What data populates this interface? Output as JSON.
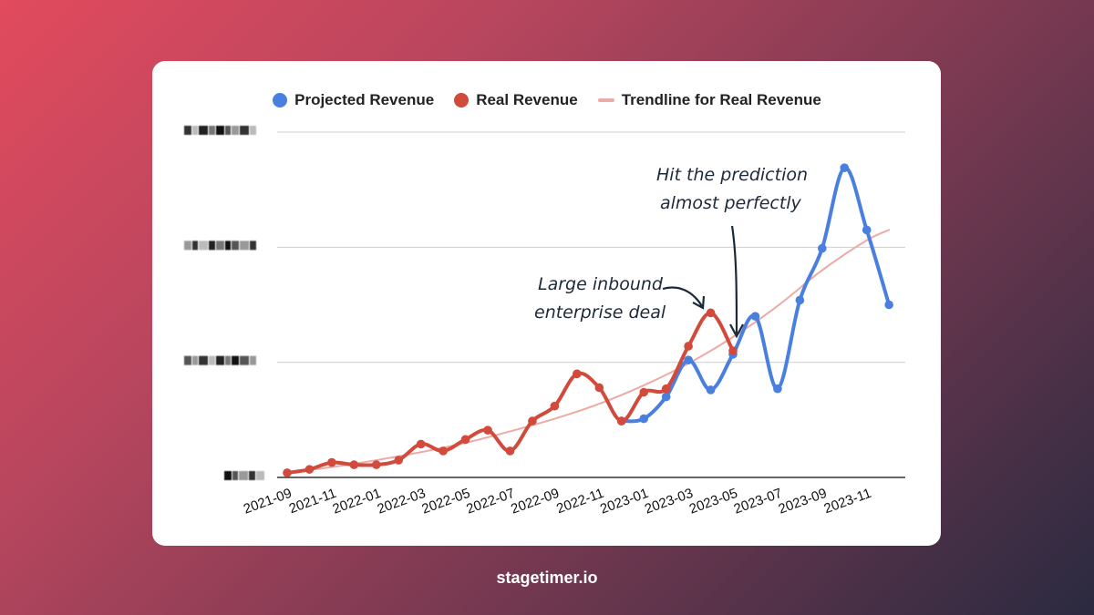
{
  "footer": {
    "brand": "stagetimer.io"
  },
  "colors": {
    "projected": "#4a7fe0",
    "real": "#d14a3c",
    "trend": "#eeaaa4"
  },
  "legend": {
    "projected": "Projected Revenue",
    "real": "Real Revenue",
    "trend": "Trendline for Real Revenue"
  },
  "annotations": {
    "deal_line1": "Large inbound",
    "deal_line2": "enterprise deal",
    "prediction_line1": "Hit the prediction",
    "prediction_line2": "almost perfectly"
  },
  "chart_data": {
    "type": "line",
    "x_tick_labels": [
      "2021-09",
      "2021-11",
      "2022-01",
      "2022-03",
      "2022-05",
      "2022-07",
      "2022-09",
      "2022-11",
      "2023-01",
      "2023-03",
      "2023-05",
      "2023-07",
      "2023-09",
      "2023-11"
    ],
    "y_tick_labels_redacted": true,
    "ylim": [
      0,
      3
    ],
    "grid": true,
    "legend_position": "top",
    "series": [
      {
        "name": "Real Revenue",
        "x": [
          "2021-09",
          "2021-10",
          "2021-11",
          "2021-12",
          "2022-01",
          "2022-02",
          "2022-03",
          "2022-04",
          "2022-05",
          "2022-06",
          "2022-07",
          "2022-08",
          "2022-09",
          "2022-10",
          "2022-11",
          "2022-12",
          "2023-01",
          "2023-02",
          "2023-03",
          "2023-04",
          "2023-05"
        ],
        "values": [
          0.04,
          0.07,
          0.13,
          0.11,
          0.11,
          0.15,
          0.29,
          0.23,
          0.33,
          0.41,
          0.23,
          0.49,
          0.62,
          0.9,
          0.78,
          0.49,
          0.74,
          0.77,
          1.14,
          1.43,
          1.1
        ]
      },
      {
        "name": "Projected Revenue",
        "x": [
          "2022-12",
          "2023-01",
          "2023-02",
          "2023-03",
          "2023-04",
          "2023-05",
          "2023-06",
          "2023-07",
          "2023-08",
          "2023-09",
          "2023-10",
          "2023-11",
          "2023-12"
        ],
        "values": [
          0.49,
          0.51,
          0.7,
          1.02,
          0.76,
          1.07,
          1.4,
          0.77,
          1.54,
          1.99,
          2.69,
          2.15,
          1.5
        ]
      },
      {
        "name": "Trendline for Real Revenue",
        "x": [
          "2021-09",
          "2021-11",
          "2022-01",
          "2022-03",
          "2022-05",
          "2022-07",
          "2022-09",
          "2022-11",
          "2023-01",
          "2023-03",
          "2023-05",
          "2023-07",
          "2023-09",
          "2023-11",
          "2023-12"
        ],
        "values": [
          0.04,
          0.09,
          0.15,
          0.22,
          0.3,
          0.4,
          0.51,
          0.64,
          0.8,
          0.99,
          1.22,
          1.49,
          1.8,
          2.06,
          2.15
        ]
      }
    ]
  }
}
